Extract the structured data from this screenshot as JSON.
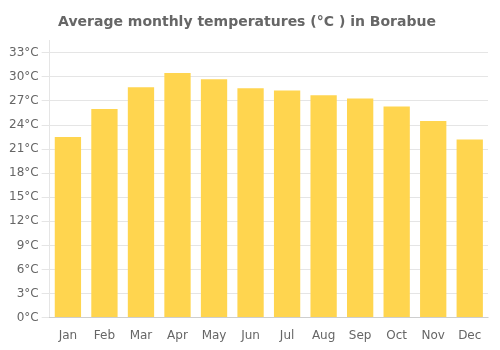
{
  "chart_data": {
    "type": "bar",
    "title": "Average monthly temperatures (°C ) in Borabue",
    "categories": [
      "Jan",
      "Feb",
      "Mar",
      "Apr",
      "May",
      "Jun",
      "Jul",
      "Aug",
      "Sep",
      "Oct",
      "Nov",
      "Dec"
    ],
    "values": [
      22.5,
      26.0,
      28.7,
      30.5,
      29.7,
      28.6,
      28.3,
      27.7,
      27.3,
      26.3,
      24.5,
      22.2
    ],
    "color": "#FFD54F",
    "ylim": [
      0,
      34.5
    ],
    "yticks": [
      {
        "value": 0,
        "label": "0°C"
      },
      {
        "value": 3,
        "label": "3°C"
      },
      {
        "value": 6,
        "label": "6°C"
      },
      {
        "value": 9,
        "label": "9°C"
      },
      {
        "value": 12,
        "label": "12°C"
      },
      {
        "value": 15,
        "label": "15°C"
      },
      {
        "value": 18,
        "label": "18°C"
      },
      {
        "value": 21,
        "label": "21°C"
      },
      {
        "value": 24,
        "label": "24°C"
      },
      {
        "value": 27,
        "label": "27°C"
      },
      {
        "value": 30,
        "label": "30°C"
      },
      {
        "value": 33,
        "label": "33°C"
      }
    ],
    "grid": true
  }
}
